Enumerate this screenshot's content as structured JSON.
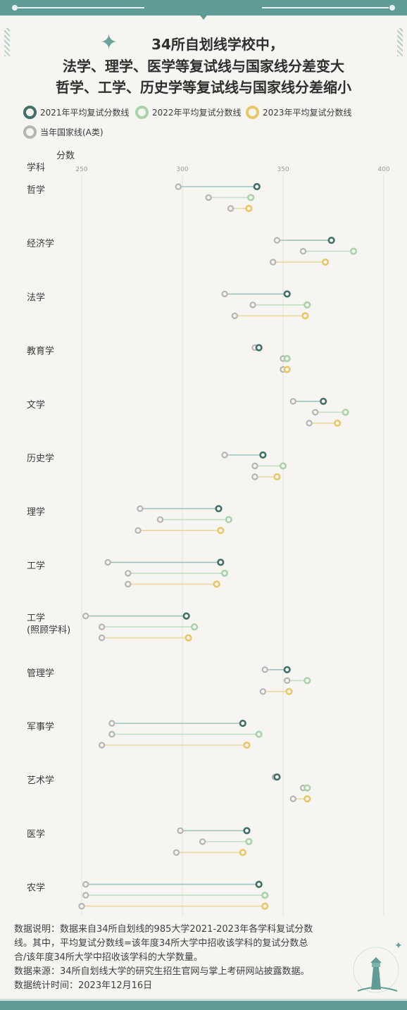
{
  "title_lines": [
    "34所自划线学校中，",
    "法学、理学、医学等复试线与国家线分差变大",
    "哲学、工学、历史学等复试线与国家线分差缩小"
  ],
  "legend": [
    {
      "label": "2021年平均复试分数线",
      "color": "#3f6f66"
    },
    {
      "label": "2022年平均复试分数线",
      "color": "#a9d3a9"
    },
    {
      "label": "2023年平均复试分数线",
      "color": "#e8c766"
    },
    {
      "label": "当年国家线(A类)",
      "color": "#b5b5b5"
    }
  ],
  "colors": {
    "line2021": "#9cc5bd",
    "line2022": "#bfe0c4",
    "line2023": "#ead99f",
    "accent": "#5e9c95"
  },
  "chart_data": {
    "type": "dumbbell",
    "ylabel": "学科",
    "xlabel": "分数",
    "xlim": [
      250,
      400
    ],
    "xticks": [
      250,
      300,
      350,
      400
    ],
    "years": [
      "2021",
      "2022",
      "2023"
    ],
    "categories": [
      "哲学",
      "经济学",
      "法学",
      "教育学",
      "文学",
      "历史学",
      "理学",
      "工学",
      "工学\n(照顾学科)",
      "管理学",
      "军事学",
      "艺术学",
      "医学",
      "农学"
    ],
    "national": [
      [
        298,
        313,
        324
      ],
      [
        347,
        360,
        345
      ],
      [
        321,
        335,
        326
      ],
      [
        336,
        350,
        350
      ],
      [
        355,
        366,
        363
      ],
      [
        321,
        336,
        336
      ],
      [
        279,
        289,
        278
      ],
      [
        263,
        273,
        273
      ],
      [
        252,
        260,
        260
      ],
      [
        341,
        352,
        340
      ],
      [
        265,
        265,
        260
      ],
      [
        346,
        360,
        355
      ],
      [
        299,
        310,
        297
      ],
      [
        252,
        252,
        250
      ]
    ],
    "average": [
      [
        337,
        334,
        333
      ],
      [
        374,
        385,
        371
      ],
      [
        352,
        362,
        361
      ],
      [
        338,
        352,
        352
      ],
      [
        370,
        381,
        377
      ],
      [
        340,
        350,
        347
      ],
      [
        318,
        323,
        319
      ],
      [
        319,
        321,
        317
      ],
      [
        302,
        306,
        303
      ],
      [
        352,
        362,
        353
      ],
      [
        330,
        338,
        332
      ],
      [
        347,
        362,
        362
      ],
      [
        332,
        333,
        330
      ],
      [
        338,
        341,
        341
      ]
    ]
  },
  "footer": {
    "lines": [
      "数据说明：数据来自34所自划线的985大学2021-2023年各学科复试分数",
      "线。其中，平均复试分数线=该年度34所大学中招收该学科的复试分数总",
      "合/该年度34所大学中招收该学科的大学数量。",
      "数据来源：34所自划线大学的研究生招生官网与掌上考研网站披露数据。",
      "数据统计时间：2023年12月16日"
    ]
  },
  "watermark": "RUC NEWS STUDIO"
}
